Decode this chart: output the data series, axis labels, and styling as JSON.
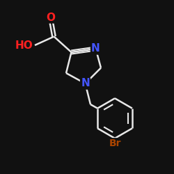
{
  "bg_color": "#111111",
  "bond_color": "#e8e8e8",
  "bond_lw": 1.8,
  "atom_colors": {
    "N": "#4455ff",
    "O": "#ff2020",
    "Br": "#aa4400",
    "C": "#e8e8e8",
    "H": "#e8e8e8"
  },
  "font_size_atom": 11,
  "font_size_br": 10
}
